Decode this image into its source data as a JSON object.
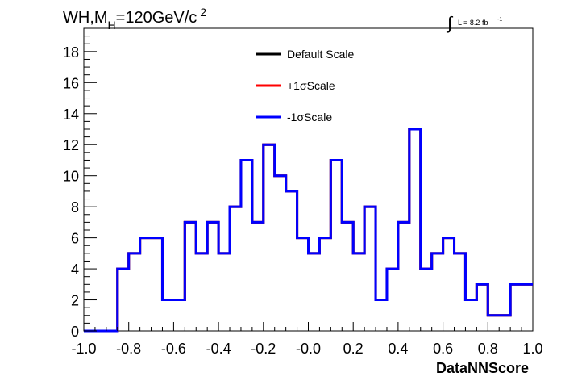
{
  "chart_data": {
    "type": "line",
    "title": {
      "prefix": "WH,M",
      "subscript": "H",
      "suffix": "=120GeV/c",
      "superscript": "2"
    },
    "luminosity_label": {
      "integral": "∫",
      "text": "L = 8.2 fb",
      "exponent": "-1"
    },
    "xlabel": "DataNNScore",
    "ylabel": "",
    "xlim": [
      -1.0,
      1.0
    ],
    "ylim": [
      0,
      19.5
    ],
    "x_tick_labels": [
      "-1.0",
      "-0.8",
      "-0.6",
      "-0.4",
      "-0.2",
      "-0.0",
      "0.2",
      "0.4",
      "0.6",
      "0.8",
      "1.0"
    ],
    "x_tick_values": [
      -1.0,
      -0.8,
      -0.6,
      -0.4,
      -0.2,
      0.0,
      0.2,
      0.4,
      0.6,
      0.8,
      1.0
    ],
    "y_tick_labels": [
      "0",
      "2",
      "4",
      "6",
      "8",
      "10",
      "12",
      "14",
      "16",
      "18"
    ],
    "y_tick_values": [
      0,
      2,
      4,
      6,
      8,
      10,
      12,
      14,
      16,
      18
    ],
    "histogram_style": "step",
    "bin_edges": [
      -1.0,
      -0.85,
      -0.8,
      -0.75,
      -0.65,
      -0.55,
      -0.5,
      -0.45,
      -0.4,
      -0.35,
      -0.3,
      -0.25,
      -0.2,
      -0.15,
      -0.1,
      -0.05,
      0.0,
      0.05,
      0.1,
      0.15,
      0.2,
      0.25,
      0.3,
      0.35,
      0.4,
      0.45,
      0.5,
      0.55,
      0.6,
      0.65,
      0.7,
      0.75,
      0.8,
      0.9,
      1.0
    ],
    "series": [
      {
        "name": "Default Scale",
        "color": "#000000",
        "values": [
          0,
          4,
          5,
          6,
          2,
          7,
          5,
          7,
          5,
          8,
          11,
          7,
          12,
          10,
          9,
          6,
          5,
          6,
          11,
          7,
          5,
          8,
          2,
          4,
          7,
          13,
          4,
          5,
          6,
          5,
          2,
          3,
          1,
          3
        ]
      },
      {
        "name": "+1σScale",
        "color": "#ff0000",
        "values": [
          0,
          4,
          5,
          6,
          2,
          7,
          5,
          7,
          5,
          8,
          11,
          7,
          12,
          10,
          9,
          6,
          5,
          6,
          11,
          7,
          5,
          8,
          2,
          4,
          7,
          13,
          4,
          5,
          6,
          5,
          2,
          3,
          1,
          3
        ]
      },
      {
        "name": "-1σScale",
        "color": "#0000ff",
        "values": [
          0,
          4,
          5,
          6,
          2,
          7,
          5,
          7,
          5,
          8,
          11,
          7,
          12,
          10,
          9,
          6,
          5,
          6,
          11,
          7,
          5,
          8,
          2,
          4,
          7,
          13,
          4,
          5,
          6,
          5,
          2,
          3,
          1,
          3
        ]
      }
    ],
    "grid": false,
    "legend_position": "top-center"
  }
}
